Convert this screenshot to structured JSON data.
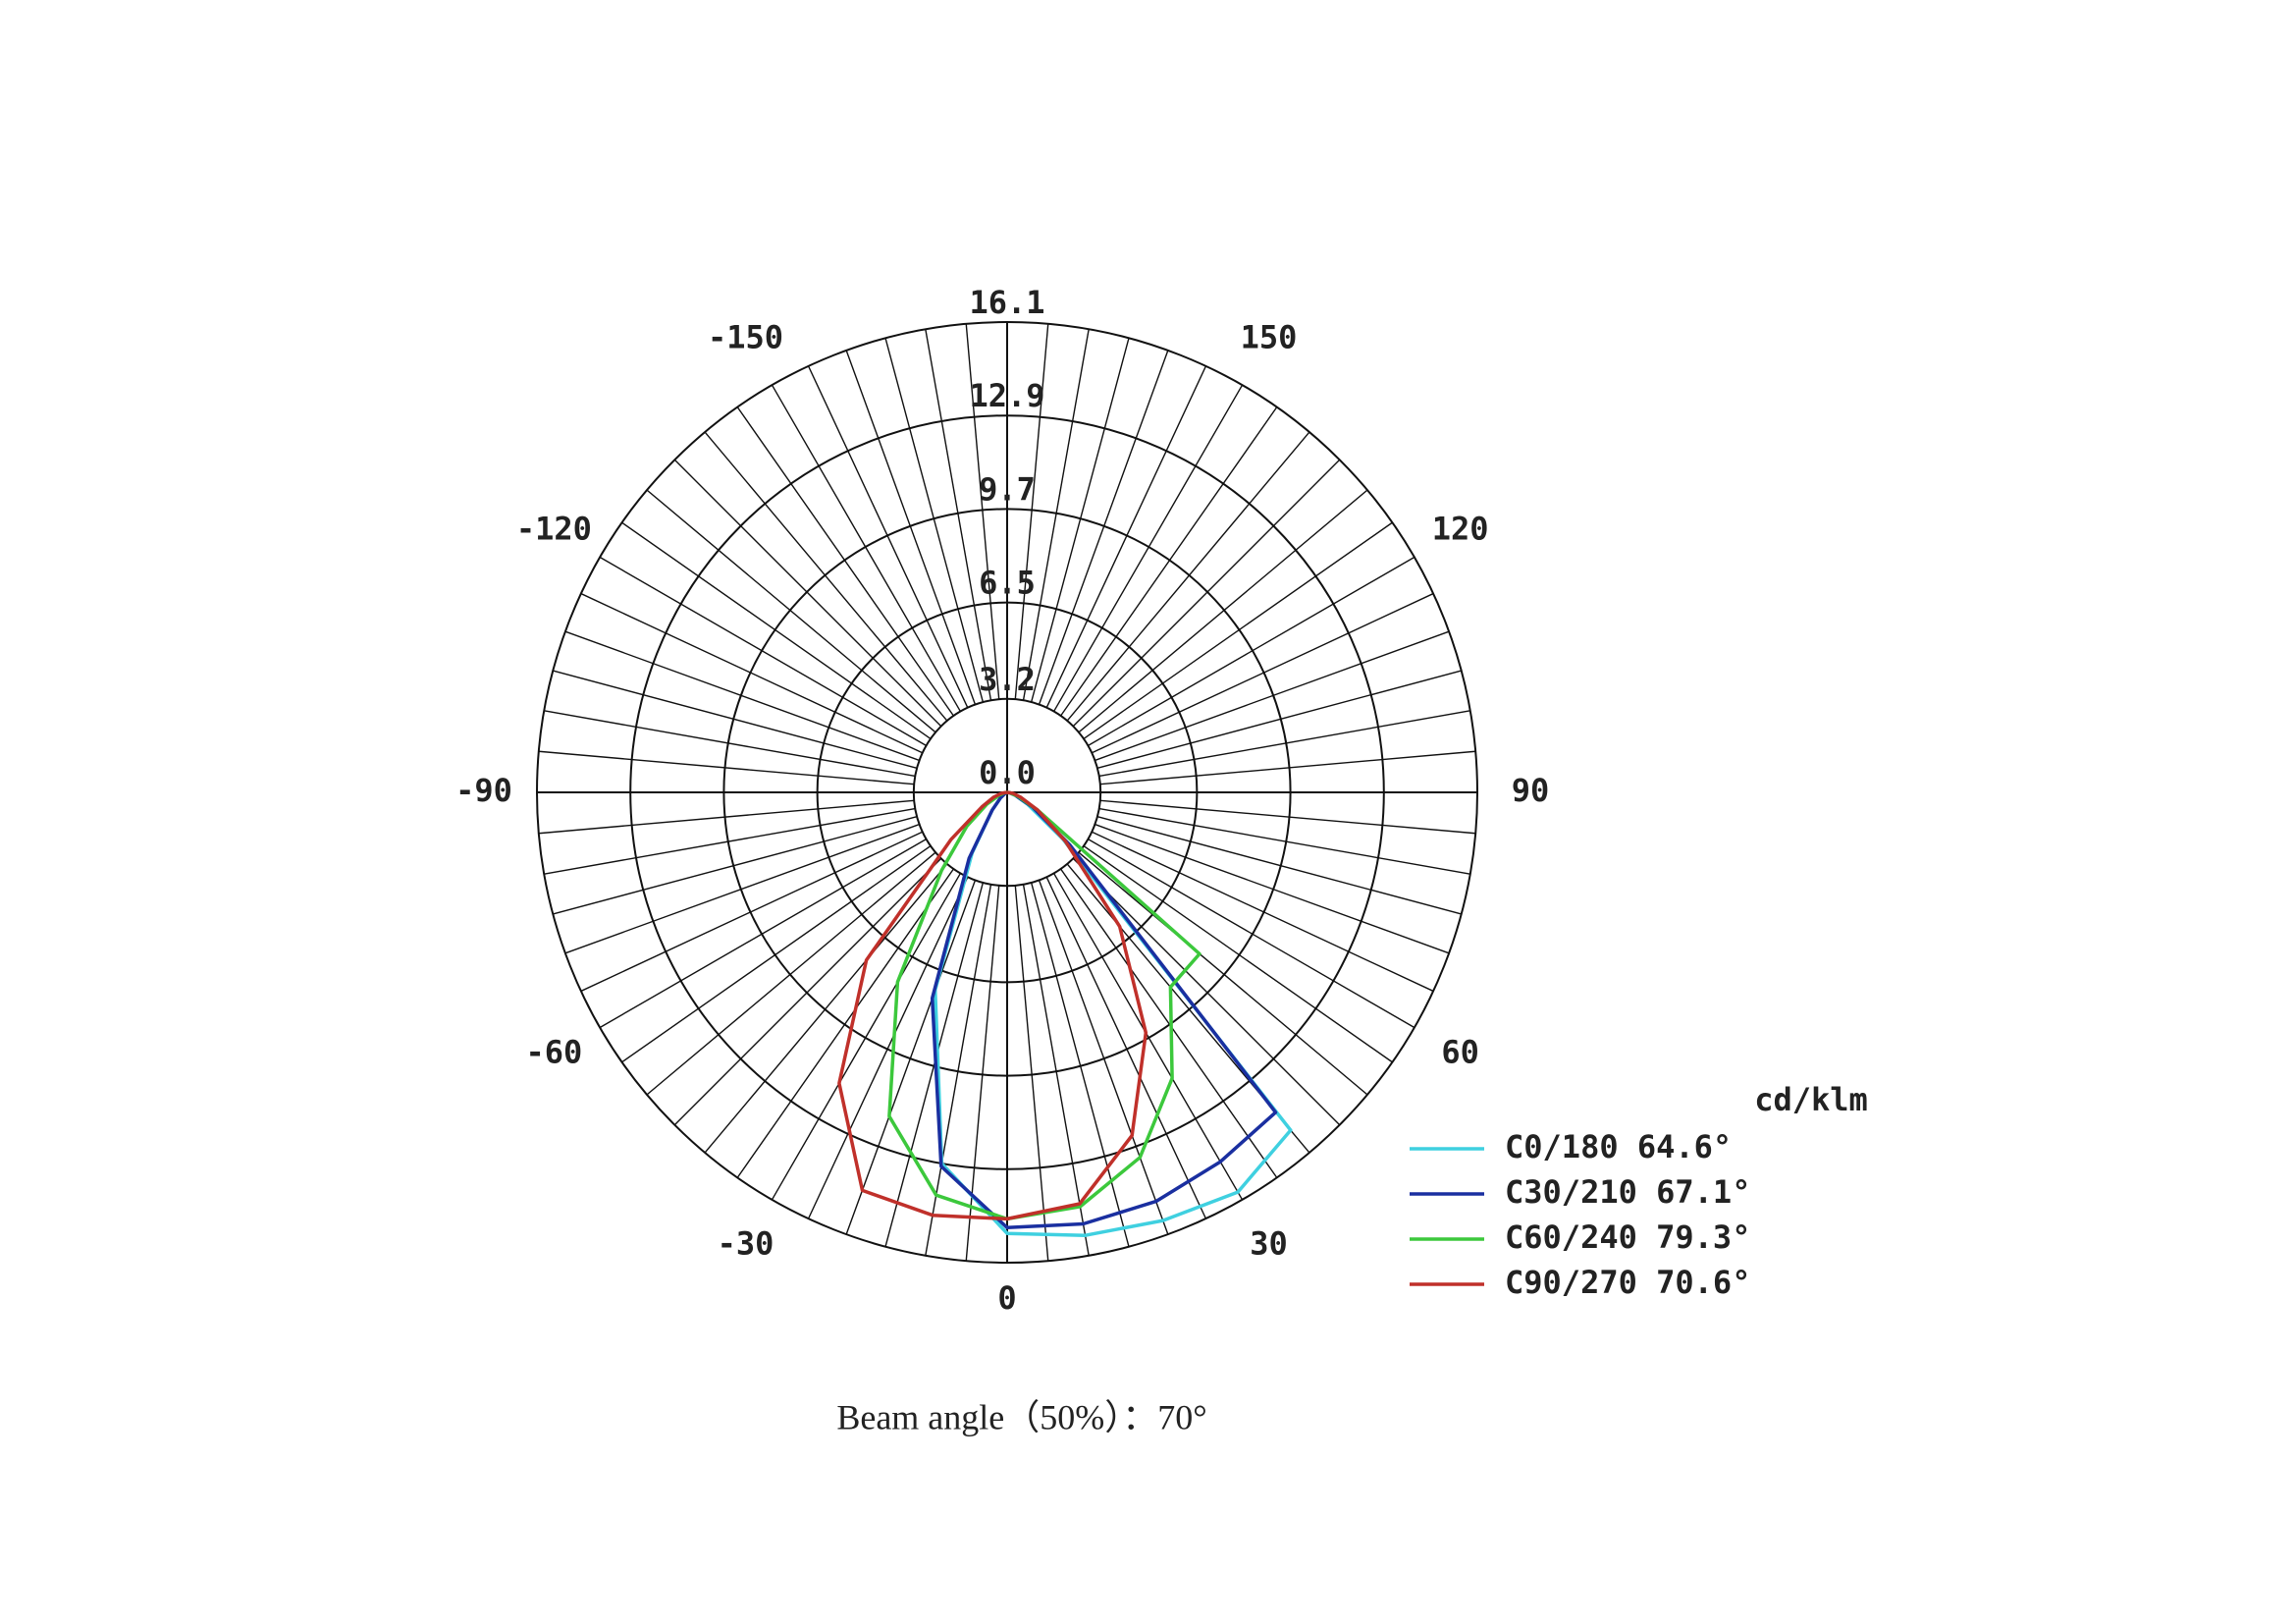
{
  "chart_data": {
    "type": "polar",
    "unit_label": "cd/klm",
    "caption": "Beam angle（50%）：70°",
    "x": [
      -90,
      -80,
      -70,
      -60,
      -50,
      -40,
      -30,
      -20,
      -10,
      0,
      10,
      20,
      30,
      40,
      50,
      60,
      70,
      80,
      90
    ],
    "series": [
      {
        "name": "C0/180 64.6°",
        "color": "#3fd0e0",
        "values": [
          0,
          0,
          0,
          0.1,
          0.3,
          0.8,
          2.4,
          7.2,
          12.9,
          15.1,
          15.4,
          15.6,
          15.8,
          15.1,
          2.5,
          0.8,
          0.3,
          0.1,
          0
        ]
      },
      {
        "name": "C30/210 67.1°",
        "color": "#1a2fa0",
        "values": [
          0,
          0,
          0,
          0.1,
          0.3,
          0.8,
          2.6,
          7.5,
          13.0,
          14.9,
          15.0,
          14.9,
          14.6,
          14.3,
          2.8,
          1.0,
          0.3,
          0.1,
          0
        ]
      },
      {
        "name": "C60/240 79.3°",
        "color": "#3cc83c",
        "values": [
          0,
          0.1,
          0.3,
          0.8,
          1.8,
          3.5,
          7.5,
          11.8,
          14.0,
          14.6,
          14.4,
          13.3,
          11.3,
          8.7,
          8.6,
          1.2,
          0.4,
          0.1,
          0
        ]
      },
      {
        "name": "C90/270 70.6°",
        "color": "#c0302a",
        "values": [
          0,
          0.2,
          0.5,
          1.0,
          2.5,
          7.5,
          11.5,
          14.5,
          14.7,
          14.6,
          14.3,
          12.5,
          9.5,
          6.0,
          2.6,
          1.2,
          0.5,
          0.2,
          0
        ]
      }
    ],
    "rlim": [
      0,
      16.1
    ],
    "rticks": [
      {
        "value": 0,
        "label": "0.0"
      },
      3.2,
      6.5,
      9.7,
      12.9,
      16.1
    ],
    "angle_ticks": [
      -150,
      -120,
      -90,
      -60,
      -30,
      0,
      30,
      60,
      90,
      120,
      150
    ],
    "angular_grid_step": 5,
    "grid": true
  }
}
